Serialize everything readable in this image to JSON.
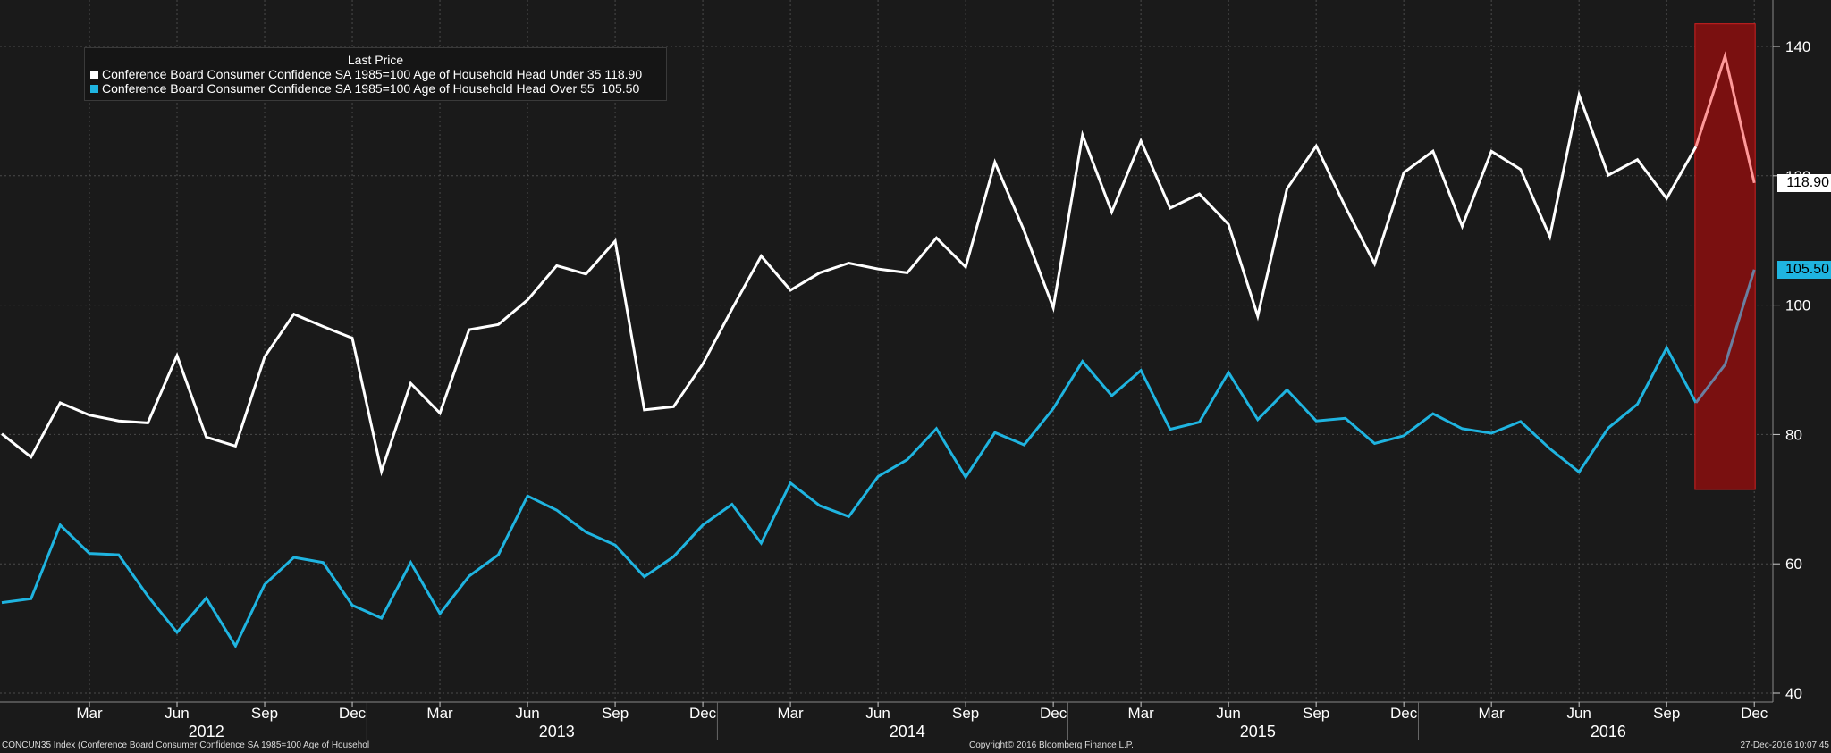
{
  "legend": {
    "title": "Last Price",
    "items": [
      {
        "label": "Conference Board Consumer Confidence SA 1985=100 Age of Household Head Under 35",
        "last": "118.90"
      },
      {
        "label": "Conference Board Consumer Confidence SA 1985=100 Age of Household Head Over 55",
        "last": "105.50"
      }
    ]
  },
  "last_value_tags": [
    "118.90",
    "105.50"
  ],
  "footer": {
    "left": "CONCUN35 Index (Conference Board Consumer Confidence SA 1985=100 Age of Househol",
    "center": "Copyright© 2016 Bloomberg Finance L.P.",
    "right": "27-Dec-2016 10:07:45"
  },
  "colors": {
    "background": "#1a1a1a",
    "series_under35": "#ffffff",
    "series_over55": "#1fb4e0",
    "highlight_fill": "#7a1010",
    "highlight_stroke": "#d02020",
    "highlight_under35": "#ff9999",
    "highlight_over55": "#6a7fa0"
  },
  "chart_data": {
    "type": "line",
    "title": "",
    "xlabel": "",
    "ylabel": "",
    "x_start": "2011-12",
    "x_end": "2016-12",
    "ylim": [
      40,
      145
    ],
    "y_ticks": [
      40,
      60,
      80,
      100,
      120,
      140
    ],
    "x_tick_labels": [
      "Mar",
      "Jun",
      "Sep",
      "Dec",
      "Mar",
      "Jun",
      "Sep",
      "Dec",
      "Mar",
      "Jun",
      "Sep",
      "Dec",
      "Mar",
      "Jun",
      "Sep",
      "Dec",
      "Mar",
      "Jun",
      "Sep",
      "Dec"
    ],
    "year_labels": [
      "2012",
      "2013",
      "2014",
      "2015",
      "2016"
    ],
    "grid": true,
    "legend_position": "top-left",
    "axis_position": "right",
    "highlight": {
      "from": "2016-10",
      "to": "2016-12",
      "y_range": [
        71.5,
        143.5
      ]
    },
    "series": [
      {
        "name": "Conference Board Consumer Confidence SA 1985=100 Age of Household Head Under 35",
        "values": [
          80.1,
          76.5,
          84.9,
          83.0,
          82.1,
          81.8,
          92.2,
          79.6,
          78.2,
          92.0,
          98.6,
          96.7,
          94.9,
          74.3,
          87.9,
          83.3,
          96.2,
          97.0,
          100.8,
          106.1,
          104.8,
          109.9,
          83.8,
          84.3,
          90.9,
          99.4,
          107.6,
          102.3,
          105.0,
          106.5,
          105.6,
          105.0,
          110.4,
          105.9,
          122.1,
          111.5,
          99.6,
          126.3,
          114.4,
          125.4,
          115.0,
          117.2,
          112.5,
          98.3,
          118.0,
          124.6,
          115.2,
          106.4,
          120.5,
          123.8,
          112.2,
          123.8,
          121.0,
          110.6,
          132.5,
          120.1,
          122.5,
          116.5,
          124.5,
          138.5,
          118.9
        ]
      },
      {
        "name": "Conference Board Consumer Confidence SA 1985=100 Age of Household Head Over 55",
        "values": [
          54.0,
          54.6,
          66.0,
          61.6,
          61.4,
          55.0,
          49.4,
          54.7,
          47.3,
          56.8,
          61.0,
          60.2,
          53.6,
          51.6,
          60.2,
          52.3,
          58.1,
          61.4,
          70.5,
          68.3,
          64.9,
          62.9,
          58.0,
          61.1,
          66.0,
          69.2,
          63.2,
          72.5,
          69.0,
          67.3,
          73.5,
          76.1,
          80.9,
          73.4,
          80.3,
          78.4,
          84.0,
          91.3,
          86.0,
          89.9,
          80.8,
          81.9,
          89.6,
          82.3,
          86.9,
          82.1,
          82.5,
          78.6,
          79.8,
          83.2,
          80.9,
          80.2,
          82.0,
          77.8,
          74.2,
          81.0,
          84.7,
          93.4,
          84.9,
          90.8,
          105.5
        ]
      }
    ]
  }
}
